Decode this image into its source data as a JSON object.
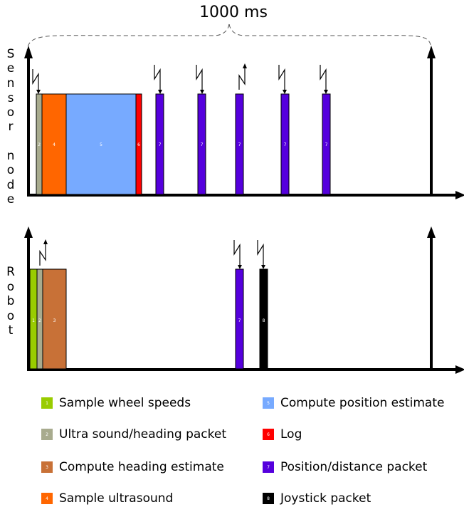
{
  "title": "1000 ms",
  "lanes": [
    {
      "label": [
        "S",
        "e",
        "n",
        "s",
        "o",
        "r",
        "",
        "n",
        "o",
        "d",
        "e"
      ],
      "tasks": [
        {
          "id": "2",
          "color": "#a8ab8e"
        },
        {
          "id": "4",
          "color": "#ff6600"
        },
        {
          "id": "5",
          "color": "#77aaff"
        },
        {
          "id": "6",
          "color": "#ff0000"
        },
        {
          "id": "7",
          "color": "#5500dd"
        },
        {
          "id": "7",
          "color": "#5500dd"
        },
        {
          "id": "7",
          "color": "#5500dd"
        },
        {
          "id": "7",
          "color": "#5500dd"
        },
        {
          "id": "7",
          "color": "#5500dd"
        }
      ]
    },
    {
      "label": [
        "R",
        "o",
        "b",
        "o",
        "t"
      ],
      "tasks": [
        {
          "id": "1",
          "color": "#99cc00"
        },
        {
          "id": "2",
          "color": "#a8ab8e"
        },
        {
          "id": "3",
          "color": "#c87137"
        },
        {
          "id": "7",
          "color": "#5500dd"
        },
        {
          "id": "8",
          "color": "#000000"
        }
      ]
    }
  ],
  "legend": [
    {
      "id": "1",
      "label": "Sample wheel speeds",
      "color": "#99cc00"
    },
    {
      "id": "2",
      "label": "Ultra sound/heading packet",
      "color": "#a8ab8e"
    },
    {
      "id": "3",
      "label": "Compute heading estimate",
      "color": "#c87137"
    },
    {
      "id": "4",
      "label": "Sample ultrasound",
      "color": "#ff6600"
    },
    {
      "id": "5",
      "label": "Compute position estimate",
      "color": "#77aaff"
    },
    {
      "id": "6",
      "label": "Log",
      "color": "#ff0000"
    },
    {
      "id": "7",
      "label": "Position/distance packet",
      "color": "#5500dd"
    },
    {
      "id": "8",
      "label": "Joystick packet",
      "color": "#000000"
    }
  ]
}
